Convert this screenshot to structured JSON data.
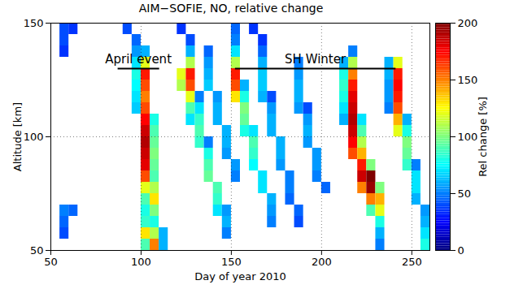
{
  "chart_data": {
    "type": "heatmap",
    "title": "AIM−SOFIE, NO, relative change",
    "x_label": "Day of year 2010",
    "y_label": "Altitude [km]",
    "xlim": [
      50,
      260
    ],
    "xticks": [
      50,
      100,
      150,
      200,
      250
    ],
    "ylim": [
      50,
      150
    ],
    "yticks": [
      50,
      100,
      150
    ],
    "grid": true,
    "x": [
      52.5,
      57.5,
      62.5,
      67.5,
      72.5,
      77.5,
      82.5,
      87.5,
      92.5,
      97.5,
      102.5,
      107.5,
      112.5,
      117.5,
      122.5,
      127.5,
      132.5,
      137.5,
      142.5,
      147.5,
      152.5,
      157.5,
      162.5,
      167.5,
      172.5,
      177.5,
      182.5,
      187.5,
      192.5,
      197.5,
      202.5,
      207.5,
      212.5,
      217.5,
      222.5,
      227.5,
      232.5,
      237.5,
      242.5,
      247.5,
      252.5,
      257.5
    ],
    "y": [
      147.5,
      142.5,
      137.5,
      132.5,
      127.5,
      122.5,
      117.5,
      112.5,
      107.5,
      102.5,
      97.5,
      92.5,
      87.5,
      82.5,
      77.5,
      72.5,
      67.5,
      62.5,
      57.5,
      52.5
    ],
    "z": [
      [
        null,
        40,
        35,
        null,
        null,
        null,
        null,
        null,
        40,
        null,
        null,
        null,
        null,
        null,
        35,
        null,
        null,
        null,
        null,
        null,
        45,
        null,
        35,
        null,
        null,
        null,
        null,
        null,
        null,
        null,
        null,
        null,
        null,
        null,
        null,
        null,
        null,
        null,
        null,
        null,
        null,
        null
      ],
      [
        null,
        40,
        null,
        null,
        null,
        null,
        null,
        null,
        null,
        45,
        null,
        null,
        null,
        null,
        null,
        40,
        null,
        null,
        null,
        null,
        50,
        null,
        null,
        35,
        null,
        null,
        null,
        null,
        null,
        null,
        null,
        null,
        null,
        null,
        null,
        null,
        null,
        null,
        null,
        null,
        null,
        null
      ],
      [
        null,
        35,
        null,
        null,
        null,
        null,
        null,
        null,
        null,
        55,
        60,
        null,
        null,
        null,
        null,
        60,
        null,
        45,
        null,
        null,
        70,
        null,
        null,
        45,
        null,
        null,
        null,
        null,
        null,
        null,
        null,
        null,
        null,
        50,
        null,
        null,
        null,
        null,
        null,
        null,
        null,
        null
      ],
      [
        null,
        null,
        null,
        null,
        null,
        null,
        null,
        null,
        null,
        70,
        120,
        null,
        null,
        null,
        null,
        110,
        null,
        55,
        null,
        null,
        110,
        null,
        null,
        60,
        null,
        null,
        null,
        50,
        null,
        null,
        null,
        null,
        60,
        110,
        null,
        null,
        null,
        60,
        120,
        null,
        null,
        null
      ],
      [
        null,
        null,
        null,
        null,
        null,
        null,
        null,
        null,
        null,
        80,
        170,
        null,
        null,
        null,
        120,
        170,
        null,
        60,
        null,
        null,
        170,
        null,
        null,
        65,
        null,
        null,
        null,
        55,
        null,
        null,
        null,
        null,
        80,
        150,
        null,
        null,
        null,
        60,
        170,
        null,
        null,
        null
      ],
      [
        null,
        null,
        null,
        null,
        null,
        null,
        null,
        null,
        null,
        75,
        160,
        null,
        null,
        null,
        110,
        160,
        null,
        65,
        null,
        null,
        160,
        60,
        null,
        65,
        null,
        null,
        null,
        60,
        null,
        null,
        null,
        null,
        85,
        170,
        null,
        null,
        null,
        55,
        175,
        null,
        null,
        null
      ],
      [
        null,
        null,
        null,
        null,
        null,
        null,
        null,
        null,
        null,
        70,
        150,
        null,
        null,
        null,
        null,
        120,
        50,
        null,
        55,
        null,
        130,
        80,
        null,
        60,
        40,
        null,
        null,
        60,
        null,
        null,
        null,
        null,
        80,
        180,
        null,
        null,
        null,
        55,
        170,
        null,
        null,
        null
      ],
      [
        null,
        null,
        null,
        null,
        null,
        null,
        null,
        null,
        null,
        65,
        160,
        null,
        null,
        null,
        null,
        90,
        70,
        null,
        60,
        null,
        null,
        100,
        null,
        null,
        55,
        null,
        null,
        55,
        40,
        null,
        null,
        null,
        70,
        185,
        null,
        null,
        null,
        50,
        160,
        null,
        null,
        null
      ],
      [
        null,
        null,
        null,
        null,
        null,
        null,
        null,
        null,
        null,
        null,
        175,
        80,
        null,
        null,
        null,
        70,
        85,
        null,
        60,
        null,
        null,
        95,
        null,
        null,
        60,
        null,
        null,
        null,
        55,
        null,
        null,
        null,
        60,
        190,
        70,
        null,
        null,
        null,
        140,
        60,
        null,
        null
      ],
      [
        null,
        null,
        null,
        null,
        null,
        null,
        null,
        null,
        null,
        null,
        185,
        90,
        null,
        null,
        null,
        null,
        90,
        null,
        null,
        60,
        null,
        80,
        70,
        null,
        60,
        null,
        null,
        null,
        60,
        null,
        null,
        null,
        null,
        185,
        90,
        null,
        null,
        null,
        120,
        80,
        null,
        null
      ],
      [
        null,
        null,
        null,
        null,
        null,
        null,
        null,
        null,
        null,
        null,
        190,
        95,
        null,
        null,
        null,
        null,
        85,
        50,
        null,
        60,
        null,
        null,
        90,
        null,
        null,
        60,
        null,
        null,
        55,
        null,
        null,
        null,
        null,
        175,
        110,
        null,
        null,
        null,
        null,
        100,
        null,
        null
      ],
      [
        null,
        null,
        null,
        null,
        null,
        null,
        null,
        null,
        null,
        null,
        185,
        100,
        null,
        null,
        null,
        null,
        null,
        80,
        null,
        55,
        null,
        null,
        85,
        null,
        null,
        60,
        null,
        null,
        null,
        55,
        null,
        null,
        null,
        160,
        140,
        null,
        null,
        null,
        null,
        95,
        null,
        null
      ],
      [
        null,
        null,
        null,
        null,
        null,
        null,
        null,
        null,
        null,
        null,
        180,
        95,
        null,
        null,
        null,
        null,
        null,
        90,
        null,
        null,
        55,
        null,
        75,
        null,
        null,
        55,
        null,
        null,
        null,
        55,
        null,
        null,
        null,
        null,
        170,
        100,
        null,
        null,
        null,
        85,
        50,
        null
      ],
      [
        null,
        null,
        null,
        null,
        null,
        null,
        null,
        null,
        null,
        null,
        160,
        90,
        null,
        null,
        null,
        null,
        null,
        95,
        null,
        null,
        50,
        null,
        null,
        70,
        null,
        null,
        50,
        null,
        null,
        50,
        null,
        null,
        null,
        null,
        185,
        200,
        null,
        null,
        null,
        null,
        70,
        null
      ],
      [
        null,
        null,
        null,
        null,
        null,
        null,
        null,
        null,
        null,
        null,
        120,
        110,
        null,
        null,
        null,
        null,
        null,
        null,
        90,
        null,
        null,
        null,
        null,
        70,
        null,
        null,
        50,
        null,
        null,
        null,
        45,
        null,
        null,
        null,
        150,
        195,
        100,
        null,
        null,
        null,
        70,
        null
      ],
      [
        null,
        null,
        null,
        null,
        null,
        null,
        null,
        null,
        null,
        null,
        90,
        130,
        null,
        null,
        null,
        null,
        null,
        null,
        85,
        null,
        null,
        null,
        null,
        null,
        60,
        null,
        45,
        null,
        null,
        null,
        null,
        null,
        null,
        null,
        null,
        150,
        140,
        null,
        null,
        null,
        60,
        null
      ],
      [
        null,
        50,
        45,
        null,
        null,
        null,
        null,
        null,
        null,
        null,
        80,
        100,
        null,
        null,
        null,
        null,
        null,
        null,
        70,
        55,
        null,
        null,
        null,
        null,
        55,
        null,
        null,
        45,
        null,
        null,
        null,
        null,
        null,
        null,
        null,
        90,
        120,
        null,
        null,
        null,
        null,
        55
      ],
      [
        null,
        45,
        null,
        null,
        null,
        null,
        null,
        null,
        null,
        null,
        85,
        80,
        null,
        null,
        null,
        null,
        null,
        null,
        null,
        60,
        null,
        null,
        null,
        null,
        50,
        null,
        null,
        40,
        null,
        null,
        null,
        null,
        null,
        null,
        null,
        null,
        80,
        null,
        null,
        null,
        null,
        60
      ],
      [
        null,
        40,
        null,
        null,
        null,
        null,
        null,
        null,
        null,
        null,
        130,
        110,
        60,
        null,
        null,
        null,
        null,
        null,
        null,
        50,
        null,
        null,
        null,
        null,
        null,
        null,
        null,
        null,
        null,
        null,
        null,
        null,
        null,
        null,
        null,
        null,
        60,
        null,
        null,
        null,
        null,
        70
      ],
      [
        null,
        null,
        null,
        null,
        null,
        null,
        null,
        null,
        null,
        null,
        90,
        150,
        60,
        null,
        null,
        null,
        null,
        null,
        null,
        null,
        null,
        null,
        null,
        null,
        null,
        null,
        null,
        null,
        null,
        null,
        null,
        null,
        null,
        null,
        null,
        null,
        50,
        null,
        null,
        null,
        null,
        80
      ]
    ],
    "colorbar": {
      "label": "Rel change [%]",
      "lim": [
        0,
        200
      ],
      "ticks": [
        0,
        50,
        100,
        150,
        200
      ]
    },
    "annotations": [
      {
        "text": "April event",
        "x": [
          87,
          110
        ],
        "y": 130
      },
      {
        "text": "SH Winter",
        "x": [
          152,
          241
        ],
        "y": 130
      }
    ]
  }
}
